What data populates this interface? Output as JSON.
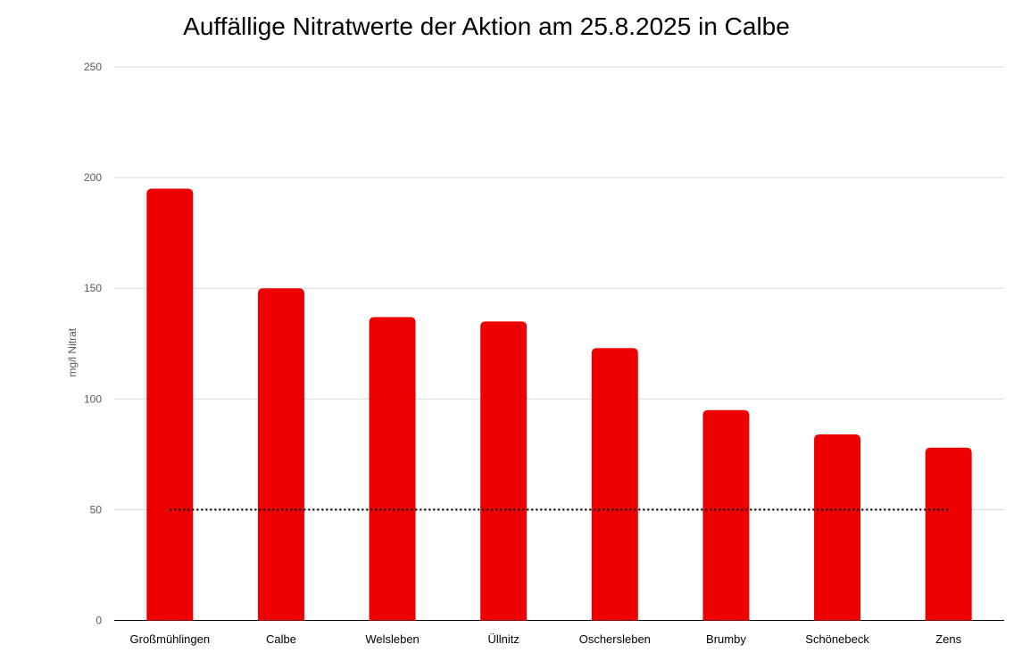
{
  "chart_data": {
    "type": "bar",
    "title": "Auffällige Nitratwerte der Aktion am 25.8.2025 in Calbe",
    "xlabel": "",
    "ylabel": "mg/l Nitrat",
    "ylim": [
      0,
      250
    ],
    "yticks": [
      0,
      50,
      100,
      150,
      200,
      250
    ],
    "grid": true,
    "categories": [
      "Großmühlingen",
      "Calbe",
      "Welsleben",
      "Üllnitz",
      "Oschersleben",
      "Brumby",
      "Schönebeck",
      "Zens"
    ],
    "values": [
      195,
      150,
      137,
      135,
      123,
      95,
      84,
      78
    ],
    "bar_color": "#ee0000",
    "reference_line": {
      "value": 50,
      "style": "dotted",
      "color": "#000000"
    }
  }
}
